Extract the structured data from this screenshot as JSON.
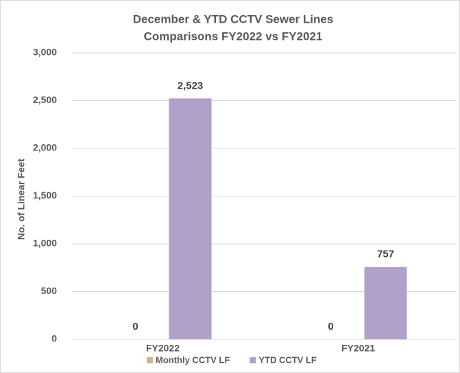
{
  "chart_data": {
    "type": "bar",
    "title": [
      "December & YTD CCTV Sewer Lines",
      "Comparisons FY2022 vs FY2021"
    ],
    "y_label": "No. of Linear Feet",
    "categories": [
      "FY2022",
      "FY2021"
    ],
    "series": [
      {
        "name": "Monthly CCTV LF",
        "color": "#c9b98c",
        "values": [
          0,
          0
        ],
        "value_labels": [
          "0",
          "0"
        ]
      },
      {
        "name": "YTD CCTV LF",
        "color": "#b1a0c9",
        "values": [
          2523,
          757
        ],
        "value_labels": [
          "2,523",
          "757"
        ]
      }
    ],
    "ylim": [
      0,
      3000
    ],
    "yticks": [
      0,
      500,
      {
        "value": 1000,
        "label": "1,000"
      },
      {
        "value": 1500,
        "label": "1,500"
      },
      {
        "value": 2000,
        "label": "2,000"
      },
      {
        "value": 2500,
        "label": "2,500"
      },
      {
        "value": 3000,
        "label": "3,000"
      }
    ],
    "grid": true,
    "legend": "bottom"
  }
}
